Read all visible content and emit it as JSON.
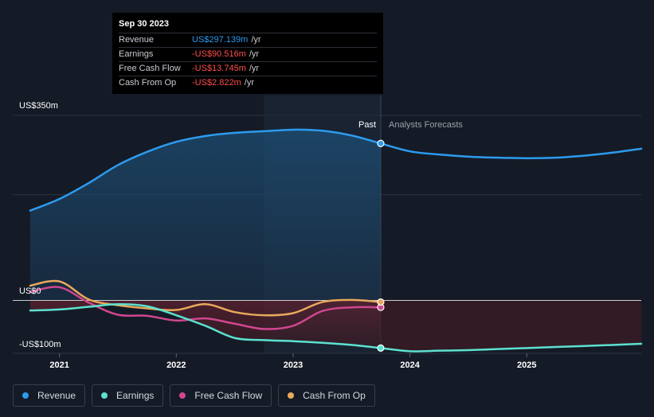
{
  "tooltip": {
    "date": "Sep 30 2023",
    "rows": [
      {
        "label": "Revenue",
        "value": "US$297.139m",
        "unit": "/yr",
        "color": "#2d9bf0"
      },
      {
        "label": "Earnings",
        "value": "-US$90.516m",
        "unit": "/yr",
        "color": "#ff4d4d"
      },
      {
        "label": "Free Cash Flow",
        "value": "-US$13.745m",
        "unit": "/yr",
        "color": "#ff4d4d"
      },
      {
        "label": "Cash From Op",
        "value": "-US$2.822m",
        "unit": "/yr",
        "color": "#ff4d4d"
      }
    ]
  },
  "chart_data": {
    "type": "line",
    "y_tick_labels": [
      {
        "value": 350,
        "label": "US$350m"
      },
      {
        "value": 0,
        "label": "US$0"
      },
      {
        "value": -100,
        "label": "-US$100m"
      }
    ],
    "ylim": [
      -100,
      350
    ],
    "xlim": [
      2020.6,
      2025.98
    ],
    "x_tick_labels": [
      "2021",
      "2022",
      "2023",
      "2024",
      "2025"
    ],
    "x_ticks": [
      2021,
      2022,
      2023,
      2024,
      2025
    ],
    "past_label": "Past",
    "forecast_label": "Analysts Forecasts",
    "divider_x": 2023.75,
    "shaded_band": [
      2022.75,
      2023.75
    ],
    "series": [
      {
        "name": "Revenue",
        "color": "#2d9bf0",
        "end_marker": true,
        "x": [
          2020.75,
          2021.0,
          2021.25,
          2021.5,
          2021.75,
          2022.0,
          2022.25,
          2022.5,
          2022.75,
          2023.0,
          2023.25,
          2023.5,
          2023.75
        ],
        "values": [
          170,
          192,
          222,
          256,
          281,
          300,
          311,
          317,
          320,
          323,
          321,
          312,
          297
        ],
        "forecast_x": [
          2023.75,
          2024.0,
          2024.25,
          2024.5,
          2024.75,
          2025.0,
          2025.25,
          2025.5,
          2025.75,
          2025.98
        ],
        "forecast_values": [
          297,
          282,
          276,
          272,
          270,
          269,
          270,
          274,
          280,
          287
        ]
      },
      {
        "name": "Earnings",
        "color": "#5ce1d0",
        "end_marker": true,
        "x": [
          2020.75,
          2021.0,
          2021.25,
          2021.5,
          2021.75,
          2022.0,
          2022.25,
          2022.5,
          2022.75,
          2023.0,
          2023.25,
          2023.5,
          2023.75
        ],
        "values": [
          -19,
          -17,
          -12,
          -7,
          -11,
          -28,
          -48,
          -71,
          -75,
          -77,
          -80,
          -84,
          -90
        ],
        "forecast_x": [
          2023.75,
          2024.0,
          2024.25,
          2024.5,
          2024.75,
          2025.0,
          2025.25,
          2025.5,
          2025.75,
          2025.98
        ],
        "forecast_values": [
          -90,
          -96,
          -95,
          -94,
          -92,
          -90,
          -88,
          -86,
          -84,
          -82
        ]
      },
      {
        "name": "Free Cash Flow",
        "color": "#d0468f",
        "end_marker": true,
        "x": [
          2020.75,
          2021.0,
          2021.25,
          2021.5,
          2021.75,
          2022.0,
          2022.25,
          2022.5,
          2022.75,
          2023.0,
          2023.25,
          2023.5,
          2023.75
        ],
        "values": [
          16,
          25,
          -4,
          -27,
          -29,
          -38,
          -34,
          -44,
          -54,
          -48,
          -20,
          -13,
          -13
        ],
        "forecast_x": [],
        "forecast_values": []
      },
      {
        "name": "Cash From Op",
        "color": "#e9a85b",
        "end_marker": true,
        "x": [
          2020.75,
          2021.0,
          2021.25,
          2021.5,
          2021.75,
          2022.0,
          2022.25,
          2022.5,
          2022.75,
          2023.0,
          2023.25,
          2023.5,
          2023.75
        ],
        "values": [
          28,
          36,
          2,
          -9,
          -15,
          -18,
          -7,
          -22,
          -28,
          -24,
          -3,
          1,
          -3
        ],
        "forecast_x": [],
        "forecast_values": []
      }
    ]
  },
  "legend": [
    {
      "label": "Revenue",
      "color": "#2d9bf0"
    },
    {
      "label": "Earnings",
      "color": "#5ce1d0"
    },
    {
      "label": "Free Cash Flow",
      "color": "#d0468f"
    },
    {
      "label": "Cash From Op",
      "color": "#e9a85b"
    }
  ]
}
